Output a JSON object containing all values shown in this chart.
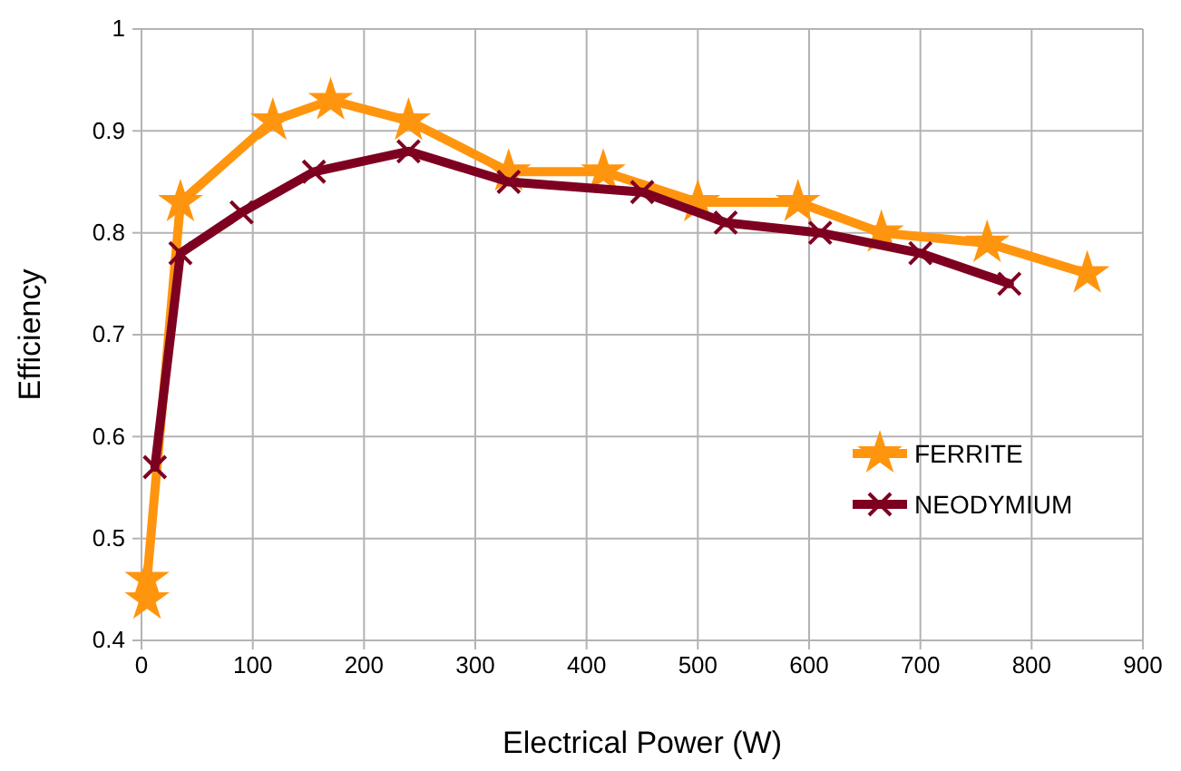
{
  "chart_data": {
    "type": "line",
    "xlabel": "Electrical Power (W)",
    "ylabel": "Efficiency",
    "xlim": [
      0,
      900
    ],
    "xticks": [
      0,
      100,
      200,
      300,
      400,
      500,
      600,
      700,
      800,
      900
    ],
    "ylim": [
      0.4,
      1
    ],
    "yticks": [
      0.4,
      0.5,
      0.6,
      0.7,
      0.8,
      0.9,
      1
    ],
    "grid": true,
    "legend": "right",
    "line_style": "solid",
    "series": [
      {
        "name": "FERRITE",
        "color": "#ff950e",
        "marker": "star",
        "x": [
          5,
          5,
          35,
          118,
          170,
          240,
          330,
          415,
          500,
          590,
          665,
          760,
          850
        ],
        "values": [
          0.44,
          0.46,
          0.83,
          0.91,
          0.93,
          0.91,
          0.86,
          0.86,
          0.83,
          0.83,
          0.8,
          0.79,
          0.76
        ]
      },
      {
        "name": "NEODYMIUM",
        "color": "#7e0021",
        "marker": "cross",
        "x": [
          12,
          35,
          90,
          155,
          240,
          330,
          450,
          525,
          610,
          700,
          780
        ],
        "values": [
          0.57,
          0.78,
          0.82,
          0.86,
          0.88,
          0.85,
          0.84,
          0.81,
          0.8,
          0.78,
          0.75
        ]
      }
    ]
  }
}
